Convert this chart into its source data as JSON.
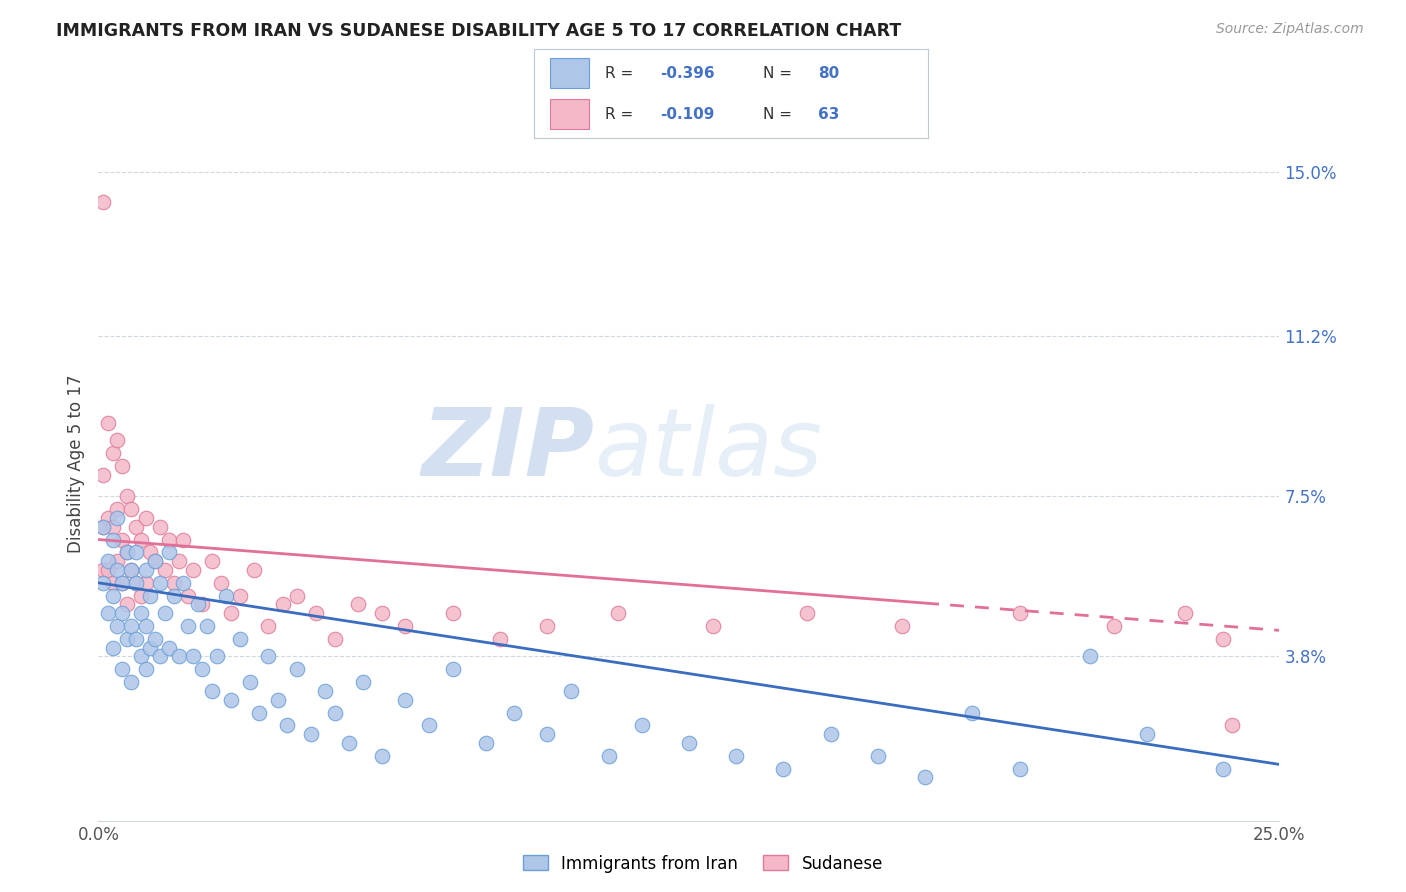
{
  "title": "IMMIGRANTS FROM IRAN VS SUDANESE DISABILITY AGE 5 TO 17 CORRELATION CHART",
  "source": "Source: ZipAtlas.com",
  "ylabel": "Disability Age 5 to 17",
  "ytick_labels": [
    "15.0%",
    "11.2%",
    "7.5%",
    "3.8%"
  ],
  "ytick_values": [
    0.15,
    0.112,
    0.075,
    0.038
  ],
  "xlim": [
    0.0,
    0.25
  ],
  "ylim": [
    0.0,
    0.165
  ],
  "scatter_iran_color": "#aec6e8",
  "scatter_iran_edge": "#6a9fd8",
  "scatter_sudan_color": "#f4b8c8",
  "scatter_sudan_edge": "#e07898",
  "trend_iran_color": "#3b6dbf",
  "trend_sudan_color": "#e07098",
  "watermark_zip": "ZIP",
  "watermark_atlas": "atlas",
  "iran_x": [
    0.001,
    0.001,
    0.002,
    0.002,
    0.003,
    0.003,
    0.003,
    0.004,
    0.004,
    0.004,
    0.005,
    0.005,
    0.005,
    0.006,
    0.006,
    0.007,
    0.007,
    0.007,
    0.008,
    0.008,
    0.008,
    0.009,
    0.009,
    0.01,
    0.01,
    0.01,
    0.011,
    0.011,
    0.012,
    0.012,
    0.013,
    0.013,
    0.014,
    0.015,
    0.015,
    0.016,
    0.017,
    0.018,
    0.019,
    0.02,
    0.021,
    0.022,
    0.023,
    0.024,
    0.025,
    0.027,
    0.028,
    0.03,
    0.032,
    0.034,
    0.036,
    0.038,
    0.04,
    0.042,
    0.045,
    0.048,
    0.05,
    0.053,
    0.056,
    0.06,
    0.065,
    0.07,
    0.075,
    0.082,
    0.088,
    0.095,
    0.1,
    0.108,
    0.115,
    0.125,
    0.135,
    0.145,
    0.155,
    0.165,
    0.175,
    0.185,
    0.195,
    0.21,
    0.222,
    0.238
  ],
  "iran_y": [
    0.068,
    0.055,
    0.06,
    0.048,
    0.065,
    0.052,
    0.04,
    0.058,
    0.045,
    0.07,
    0.055,
    0.048,
    0.035,
    0.062,
    0.042,
    0.058,
    0.045,
    0.032,
    0.055,
    0.042,
    0.062,
    0.048,
    0.038,
    0.058,
    0.045,
    0.035,
    0.052,
    0.04,
    0.06,
    0.042,
    0.055,
    0.038,
    0.048,
    0.062,
    0.04,
    0.052,
    0.038,
    0.055,
    0.045,
    0.038,
    0.05,
    0.035,
    0.045,
    0.03,
    0.038,
    0.052,
    0.028,
    0.042,
    0.032,
    0.025,
    0.038,
    0.028,
    0.022,
    0.035,
    0.02,
    0.03,
    0.025,
    0.018,
    0.032,
    0.015,
    0.028,
    0.022,
    0.035,
    0.018,
    0.025,
    0.02,
    0.03,
    0.015,
    0.022,
    0.018,
    0.015,
    0.012,
    0.02,
    0.015,
    0.01,
    0.025,
    0.012,
    0.038,
    0.02,
    0.012
  ],
  "sudan_x": [
    0.001,
    0.001,
    0.001,
    0.001,
    0.002,
    0.002,
    0.002,
    0.003,
    0.003,
    0.003,
    0.004,
    0.004,
    0.004,
    0.005,
    0.005,
    0.005,
    0.006,
    0.006,
    0.006,
    0.007,
    0.007,
    0.008,
    0.008,
    0.009,
    0.009,
    0.01,
    0.01,
    0.011,
    0.012,
    0.013,
    0.014,
    0.015,
    0.016,
    0.017,
    0.018,
    0.019,
    0.02,
    0.022,
    0.024,
    0.026,
    0.028,
    0.03,
    0.033,
    0.036,
    0.039,
    0.042,
    0.046,
    0.05,
    0.055,
    0.06,
    0.065,
    0.075,
    0.085,
    0.095,
    0.11,
    0.13,
    0.15,
    0.17,
    0.195,
    0.215,
    0.23,
    0.238,
    0.24
  ],
  "sudan_y": [
    0.143,
    0.08,
    0.068,
    0.058,
    0.092,
    0.07,
    0.058,
    0.085,
    0.068,
    0.055,
    0.088,
    0.072,
    0.06,
    0.082,
    0.065,
    0.055,
    0.075,
    0.062,
    0.05,
    0.072,
    0.058,
    0.068,
    0.055,
    0.065,
    0.052,
    0.07,
    0.055,
    0.062,
    0.06,
    0.068,
    0.058,
    0.065,
    0.055,
    0.06,
    0.065,
    0.052,
    0.058,
    0.05,
    0.06,
    0.055,
    0.048,
    0.052,
    0.058,
    0.045,
    0.05,
    0.052,
    0.048,
    0.042,
    0.05,
    0.048,
    0.045,
    0.048,
    0.042,
    0.045,
    0.048,
    0.045,
    0.048,
    0.045,
    0.048,
    0.045,
    0.048,
    0.042,
    0.022
  ],
  "iran_trend_start_x": 0.0,
  "iran_trend_end_x": 0.25,
  "iran_trend_start_y": 0.055,
  "iran_trend_end_y": 0.013,
  "sudan_trend_start_x": 0.0,
  "sudan_trend_solid_end_x": 0.175,
  "sudan_trend_end_x": 0.25,
  "sudan_trend_start_y": 0.065,
  "sudan_trend_end_y": 0.044
}
